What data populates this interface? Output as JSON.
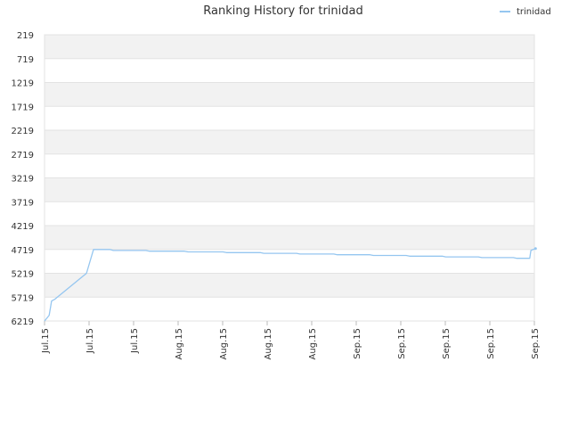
{
  "chart_data": {
    "type": "line",
    "title": "Ranking History for trinidad",
    "legend": {
      "position": "top-right",
      "entries": [
        "trinidad"
      ]
    },
    "series": [
      {
        "name": "trinidad",
        "color": "#95c6f0",
        "points": [
          [
            0.0,
            6219
          ],
          [
            0.4,
            6100
          ],
          [
            0.6,
            5800
          ],
          [
            0.9,
            5760
          ],
          [
            3.6,
            5219
          ],
          [
            4.2,
            4719
          ],
          [
            5.6,
            4719
          ],
          [
            5.9,
            4740
          ],
          [
            8.7,
            4740
          ],
          [
            9.0,
            4755
          ],
          [
            12.0,
            4755
          ],
          [
            12.3,
            4770
          ],
          [
            15.3,
            4770
          ],
          [
            15.6,
            4785
          ],
          [
            18.5,
            4785
          ],
          [
            18.8,
            4800
          ],
          [
            21.6,
            4800
          ],
          [
            21.9,
            4815
          ],
          [
            24.8,
            4815
          ],
          [
            25.1,
            4830
          ],
          [
            27.9,
            4830
          ],
          [
            28.2,
            4845
          ],
          [
            31.0,
            4845
          ],
          [
            31.3,
            4860
          ],
          [
            34.1,
            4860
          ],
          [
            34.4,
            4875
          ],
          [
            37.2,
            4875
          ],
          [
            37.5,
            4890
          ],
          [
            40.2,
            4890
          ],
          [
            40.5,
            4905
          ],
          [
            41.6,
            4905
          ],
          [
            41.7,
            4740
          ],
          [
            42.1,
            4700
          ]
        ]
      }
    ],
    "y_axis": {
      "reversed": true,
      "range": [
        219,
        6219
      ],
      "ticks": [
        "219",
        "719",
        "1219",
        "1719",
        "2219",
        "2719",
        "3219",
        "3719",
        "4219",
        "4719",
        "5219",
        "5719",
        "6219"
      ]
    },
    "x_axis": {
      "range": [
        0,
        42
      ],
      "ticks": [
        "Jul.15",
        "Jul.15",
        "Jul.15",
        "Aug.15",
        "Aug.15",
        "Aug.15",
        "Aug.15",
        "Sep.15",
        "Sep.15",
        "Sep.15",
        "Sep.15",
        "Sep.15"
      ]
    },
    "grid": true,
    "band_colors": [
      "#f2f2f2",
      "#ffffff"
    ]
  }
}
